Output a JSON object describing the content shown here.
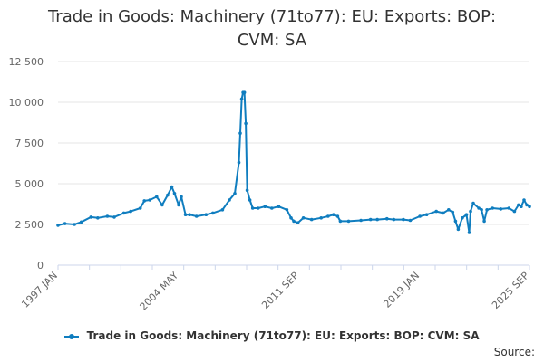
{
  "chart_data": {
    "type": "line",
    "title_lines": [
      "Trade in Goods: Machinery (71to77): EU: Exports: BOP:",
      "CVM: SA"
    ],
    "title": "Trade in Goods: Machinery (71to77): EU: Exports: BOP: CVM: SA",
    "xlabel": "",
    "ylabel": "",
    "x_ticks": [
      "1997 JAN",
      "2004 MAY",
      "2011 SEP",
      "2019 JAN",
      "2025 SEP"
    ],
    "y_ticks": [
      "0",
      "2 500",
      "5 000",
      "7 500",
      "10 000",
      "12 500"
    ],
    "ylim": [
      0,
      12500
    ],
    "xlim": [
      "1997-01",
      "2025-09"
    ],
    "grid": "horizontal",
    "legend_position": "bottom",
    "series": [
      {
        "name": "Trade in Goods: Machinery (71to77): EU: Exports: BOP: CVM: SA",
        "color": "#0f7dbf",
        "points": [
          [
            "1997-01",
            2450
          ],
          [
            "1997-06",
            2550
          ],
          [
            "1998-01",
            2500
          ],
          [
            "1998-06",
            2650
          ],
          [
            "1999-01",
            2950
          ],
          [
            "1999-06",
            2900
          ],
          [
            "2000-01",
            3000
          ],
          [
            "2000-06",
            2950
          ],
          [
            "2001-01",
            3200
          ],
          [
            "2001-06",
            3300
          ],
          [
            "2002-01",
            3500
          ],
          [
            "2002-04",
            3950
          ],
          [
            "2002-08",
            4000
          ],
          [
            "2003-01",
            4200
          ],
          [
            "2003-05",
            3700
          ],
          [
            "2003-09",
            4300
          ],
          [
            "2003-12",
            4800
          ],
          [
            "2004-02",
            4400
          ],
          [
            "2004-05",
            3700
          ],
          [
            "2004-07",
            4200
          ],
          [
            "2004-10",
            3100
          ],
          [
            "2005-01",
            3100
          ],
          [
            "2005-06",
            3000
          ],
          [
            "2006-01",
            3100
          ],
          [
            "2006-06",
            3200
          ],
          [
            "2007-01",
            3400
          ],
          [
            "2007-06",
            4000
          ],
          [
            "2007-10",
            4400
          ],
          [
            "2008-01",
            6300
          ],
          [
            "2008-02",
            8100
          ],
          [
            "2008-03",
            10200
          ],
          [
            "2008-04",
            10600
          ],
          [
            "2008-05",
            10600
          ],
          [
            "2008-06",
            8700
          ],
          [
            "2008-07",
            4600
          ],
          [
            "2008-09",
            4000
          ],
          [
            "2008-11",
            3500
          ],
          [
            "2009-03",
            3500
          ],
          [
            "2009-08",
            3600
          ],
          [
            "2010-01",
            3500
          ],
          [
            "2010-06",
            3600
          ],
          [
            "2010-12",
            3400
          ],
          [
            "2011-03",
            2900
          ],
          [
            "2011-05",
            2700
          ],
          [
            "2011-08",
            2600
          ],
          [
            "2011-12",
            2900
          ],
          [
            "2012-06",
            2800
          ],
          [
            "2013-01",
            2900
          ],
          [
            "2013-06",
            3000
          ],
          [
            "2013-10",
            3100
          ],
          [
            "2014-01",
            3000
          ],
          [
            "2014-03",
            2700
          ],
          [
            "2014-09",
            2700
          ],
          [
            "2015-06",
            2750
          ],
          [
            "2016-01",
            2800
          ],
          [
            "2016-06",
            2800
          ],
          [
            "2017-01",
            2850
          ],
          [
            "2017-06",
            2800
          ],
          [
            "2018-01",
            2800
          ],
          [
            "2018-06",
            2750
          ],
          [
            "2019-01",
            3000
          ],
          [
            "2019-06",
            3100
          ],
          [
            "2020-01",
            3300
          ],
          [
            "2020-06",
            3200
          ],
          [
            "2020-10",
            3400
          ],
          [
            "2021-01",
            3250
          ],
          [
            "2021-03",
            2700
          ],
          [
            "2021-05",
            2200
          ],
          [
            "2021-08",
            2900
          ],
          [
            "2021-11",
            3100
          ],
          [
            "2022-01",
            2000
          ],
          [
            "2022-02",
            3300
          ],
          [
            "2022-04",
            3800
          ],
          [
            "2022-08",
            3500
          ],
          [
            "2022-10",
            3400
          ],
          [
            "2022-12",
            2700
          ],
          [
            "2023-02",
            3400
          ],
          [
            "2023-06",
            3500
          ],
          [
            "2023-12",
            3450
          ],
          [
            "2024-06",
            3500
          ],
          [
            "2024-10",
            3300
          ],
          [
            "2025-01",
            3700
          ],
          [
            "2025-03",
            3600
          ],
          [
            "2025-05",
            4000
          ],
          [
            "2025-07",
            3700
          ],
          [
            "2025-09",
            3600
          ]
        ]
      }
    ]
  },
  "source_label": "Source:"
}
